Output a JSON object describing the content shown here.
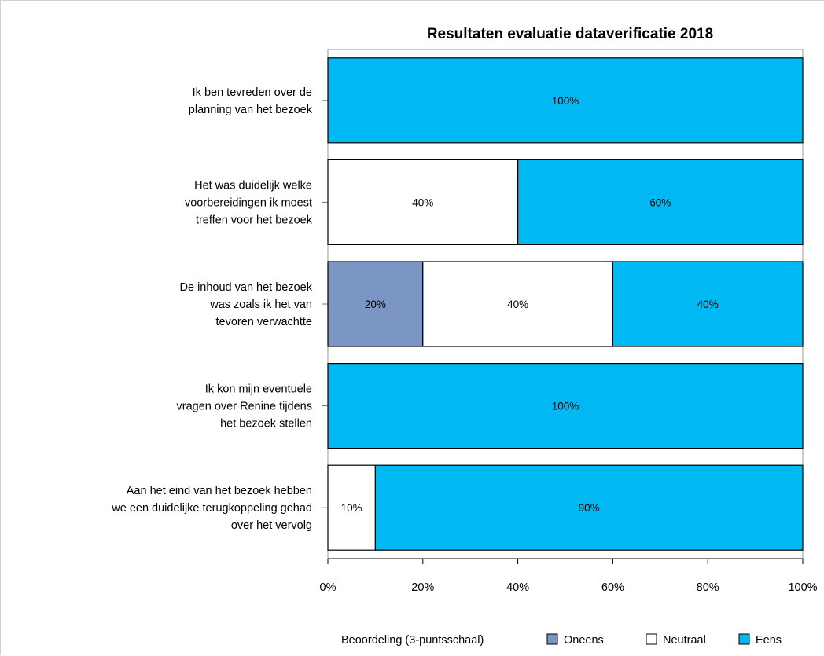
{
  "chart_data": {
    "type": "bar",
    "orientation": "horizontal",
    "stacked": true,
    "title": "Resultaten evaluatie dataverificatie 2018",
    "categories": [
      [
        "Ik ben tevreden over de",
        "planning van het bezoek"
      ],
      [
        "Het was duidelijk welke",
        "voorbereidingen ik moest",
        "treffen voor het bezoek"
      ],
      [
        "De inhoud van het bezoek",
        "was zoals ik het van",
        "tevoren verwachtte"
      ],
      [
        "Ik kon mijn eventuele",
        "vragen over Renine tijdens",
        "het bezoek stellen"
      ],
      [
        "Aan het eind van het bezoek hebben",
        "we een duidelijke terugkoppeling gehad",
        "over het vervolg"
      ]
    ],
    "series": [
      {
        "name": "Oneens",
        "color": "#7b96c4",
        "values": [
          0,
          0,
          20,
          0,
          0
        ]
      },
      {
        "name": "Neutraal",
        "color": "#ffffff",
        "values": [
          0,
          40,
          40,
          0,
          10
        ]
      },
      {
        "name": "Eens",
        "color": "#00b9f2",
        "values": [
          100,
          60,
          40,
          100,
          90
        ]
      }
    ],
    "xlim": [
      0,
      100
    ],
    "xticks": [
      "0%",
      "20%",
      "40%",
      "60%",
      "80%",
      "100%"
    ],
    "legend": {
      "title": "Beoordeling (3-puntsschaal)",
      "placement": "bottom"
    },
    "grid": false
  }
}
